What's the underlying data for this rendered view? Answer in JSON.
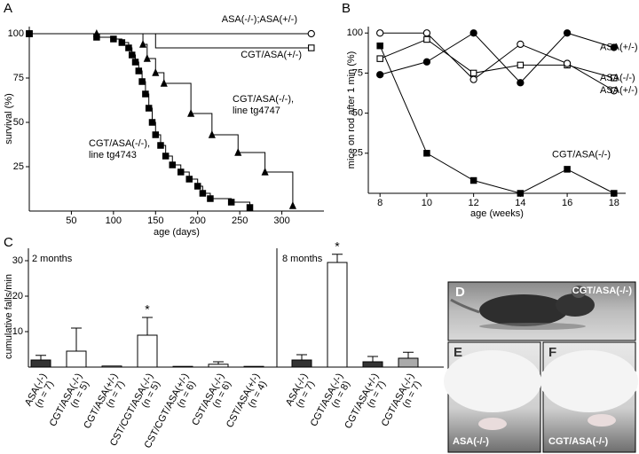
{
  "chart_data": [
    {
      "type": "step",
      "panel": "A",
      "x_label": "age (days)",
      "y_label": "survival (%)",
      "xlim": [
        0,
        350
      ],
      "xticks": [
        50,
        100,
        150,
        200,
        250,
        300
      ],
      "ylim": [
        0,
        104
      ],
      "yticks": [
        25,
        50,
        75,
        100
      ],
      "series": [
        {
          "label": [
            "ASA(-/-);ASA(+/-)"
          ],
          "color": "#000000",
          "marker": "circle",
          "filled": false,
          "markers": "end",
          "x": [
            0,
            335
          ],
          "values": [
            100,
            100
          ]
        },
        {
          "label": [
            "CGT/ASA(+/-)"
          ],
          "color": "#000000",
          "marker": "square",
          "filled": false,
          "markers": "end",
          "x": [
            0,
            150,
            335
          ],
          "values": [
            100,
            92,
            92
          ]
        },
        {
          "label": [
            "CGT/ASA(-/-),",
            "line tg4747"
          ],
          "color": "#000000",
          "marker": "triangle",
          "filled": true,
          "markers": "all",
          "x": [
            0,
            80,
            135,
            140,
            150,
            160,
            192,
            217,
            248,
            280,
            313
          ],
          "values": [
            100,
            100,
            94,
            86,
            78,
            72,
            55,
            43,
            33,
            22,
            3
          ]
        },
        {
          "label": [
            "CGT/ASA(-/-),",
            "line tg4743"
          ],
          "color": "#000000",
          "marker": "square",
          "filled": true,
          "markers": "all",
          "x": [
            0,
            80,
            100,
            110,
            118,
            122,
            126,
            130,
            134,
            138,
            142,
            146,
            150,
            156,
            162,
            170,
            180,
            190,
            200,
            206,
            215,
            240,
            262
          ],
          "values": [
            100,
            98,
            97,
            95,
            92,
            88,
            84,
            79,
            73,
            66,
            58,
            50,
            43,
            37,
            31,
            26,
            22,
            18,
            14,
            10,
            7,
            5,
            2
          ]
        }
      ]
    },
    {
      "type": "line",
      "panel": "B",
      "x_label": "age (weeks)",
      "y_label": "mice on rod after 1 min (%)",
      "x": [
        8,
        10,
        12,
        14,
        16,
        18
      ],
      "xlim": [
        7.5,
        18.5
      ],
      "xticks": [
        8,
        10,
        12,
        14,
        16,
        18
      ],
      "ylim": [
        0,
        104
      ],
      "yticks": [
        25,
        50,
        75,
        100
      ],
      "series": [
        {
          "name": "ASA(+/-)",
          "color": "#000000",
          "marker": "circle",
          "filled": true,
          "values": [
            74,
            82,
            100,
            69,
            100,
            91
          ]
        },
        {
          "name": "ASA(-/-)",
          "color": "#000000",
          "marker": "square",
          "filled": false,
          "values": [
            84,
            96,
            75,
            80,
            80,
            72
          ]
        },
        {
          "name": "ASA(+/-)",
          "color": "#000000",
          "marker": "circle",
          "filled": false,
          "values": [
            100,
            100,
            71,
            93,
            81,
            64
          ]
        },
        {
          "name": "CGT/ASA(-/-)",
          "color": "#000000",
          "marker": "square",
          "filled": true,
          "values": [
            92,
            25,
            8,
            0,
            15,
            0
          ]
        }
      ]
    },
    {
      "type": "bar",
      "panel": "C",
      "y_label": "cumulative falls/min",
      "ylim": [
        0,
        33.5
      ],
      "yticks": [
        10,
        20,
        30
      ],
      "groups": [
        {
          "name": "2 months",
          "categories": [
            "ASA(-/-)",
            "CGT/ASA(-/-)",
            "CGT/ASA(+/-)",
            "CST/CGT/ASA(-/-)",
            "CST/CGT/ASA(+/-)",
            "CST/ASA(-/-)",
            "CST/ASA(+/-)"
          ],
          "n_labels": [
            "(n = 7)",
            "(n = 5)",
            "(n = 7)",
            "(n = 5)",
            "(n = 6)",
            "(n = 6)",
            "(n = 4)"
          ],
          "values": [
            2,
            4.5,
            0.3,
            9,
            0.2,
            0.8,
            0.2
          ],
          "errors": [
            1.3,
            6.5,
            null,
            5,
            null,
            0.7,
            null
          ],
          "colors": [
            "#333333",
            "#ffffff",
            "#ffffff",
            "#ffffff",
            "#ffffff",
            "#ffffff",
            "#ffffff"
          ],
          "significance": [
            null,
            null,
            null,
            "*",
            null,
            null,
            null
          ]
        },
        {
          "name": "8 months",
          "categories": [
            "ASA(-/-)",
            "CGT/ASA(-/-)",
            "CGT/ASA(+/-)",
            "CGT/ASA(-/-)"
          ],
          "n_labels": [
            "(n = 7)",
            "(n = 8)",
            "(n = 7)",
            "(n = 7)"
          ],
          "values": [
            2,
            29.5,
            1.5,
            2.5
          ],
          "errors": [
            1.5,
            2.3,
            1.5,
            1.7
          ],
          "colors": [
            "#333333",
            "#ffffff",
            "#333333",
            "#aaaaaa"
          ],
          "significance": [
            null,
            "*",
            null,
            null
          ]
        }
      ]
    }
  ],
  "photos": [
    {
      "panel": "D",
      "caption": "CGT/ASA(-/-)"
    },
    {
      "panel": "E",
      "caption": "ASA(-/-)"
    },
    {
      "panel": "F",
      "caption": "CGT/ASA(-/-)"
    }
  ]
}
